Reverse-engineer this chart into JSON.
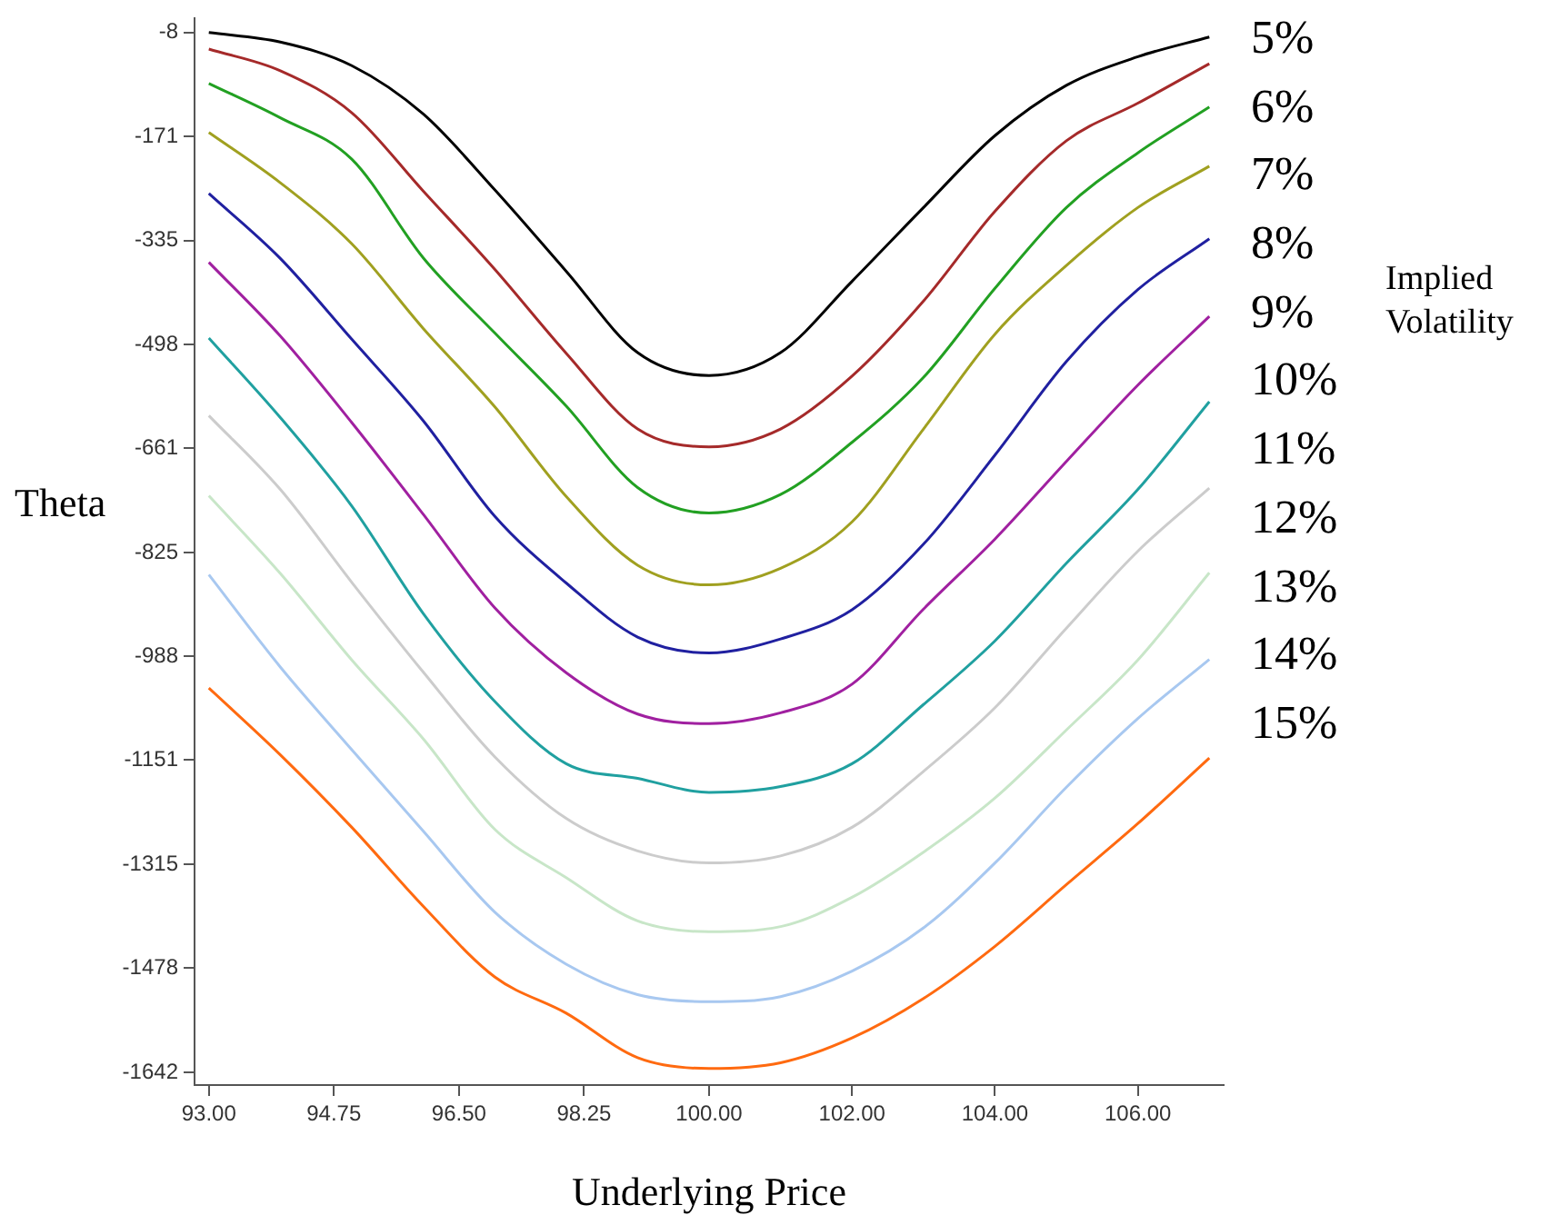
{
  "chart_data": {
    "type": "line",
    "xlabel": "Underlying Price",
    "ylabel": "Theta",
    "legend_title": "Implied Volatility",
    "legend": "right",
    "grid": false,
    "marker": "none",
    "line_style": "solid",
    "x": [
      93,
      94,
      95,
      96,
      97,
      98,
      99,
      100,
      101,
      102,
      103,
      104,
      105,
      106,
      107
    ],
    "xlim": [
      92.8,
      107.2
    ],
    "xticks": [
      {
        "value": 93,
        "label": "93.00"
      },
      {
        "value": 94.75,
        "label": "94.75"
      },
      {
        "value": 96.5,
        "label": "96.50"
      },
      {
        "value": 98.25,
        "label": "98.25"
      },
      {
        "value": 100,
        "label": "100.00"
      },
      {
        "value": 102,
        "label": "102.00"
      },
      {
        "value": 104,
        "label": "104.00"
      },
      {
        "value": 106,
        "label": "106.00"
      }
    ],
    "ylim": [
      -1662,
      14
    ],
    "yticks": [
      -8,
      -171,
      -335,
      -498,
      -661,
      -825,
      -988,
      -1151,
      -1315,
      -1478,
      -1642
    ],
    "series": [
      {
        "name": "5%",
        "color": "#000000",
        "values": [
          -8,
          -23,
          -60,
          -136,
          -255,
          -383,
          -511,
          -547,
          -511,
          -399,
          -283,
          -170,
          -91,
          -46,
          -15
        ]
      },
      {
        "name": "6%",
        "color": "#a52a2a",
        "values": [
          -34,
          -68,
          -134,
          -257,
          -380,
          -512,
          -631,
          -659,
          -631,
          -548,
          -430,
          -289,
          -178,
          -119,
          -57
        ]
      },
      {
        "name": "7%",
        "color": "#22a022",
        "values": [
          -88,
          -142,
          -207,
          -362,
          -480,
          -595,
          -723,
          -763,
          -734,
          -652,
          -550,
          -410,
          -283,
          -197,
          -125
        ]
      },
      {
        "name": "8%",
        "color": "#a0a020",
        "values": [
          -165,
          -244,
          -340,
          -473,
          -596,
          -737,
          -845,
          -876,
          -850,
          -777,
          -631,
          -482,
          -374,
          -283,
          -218
        ]
      },
      {
        "name": "9%",
        "color": "#2020a0",
        "values": [
          -261,
          -363,
          -490,
          -618,
          -768,
          -873,
          -958,
          -983,
          -961,
          -915,
          -812,
          -672,
          -525,
          -412,
          -332
        ]
      },
      {
        "name": "10%",
        "color": "#a020a0",
        "values": [
          -369,
          -485,
          -621,
          -765,
          -912,
          -1014,
          -1079,
          -1094,
          -1077,
          -1032,
          -914,
          -804,
          -682,
          -562,
          -454
        ]
      },
      {
        "name": "11%",
        "color": "#20a0a0",
        "values": [
          -488,
          -613,
          -752,
          -921,
          -1059,
          -1157,
          -1180,
          -1202,
          -1193,
          -1157,
          -1064,
          -964,
          -842,
          -726,
          -588
        ]
      },
      {
        "name": "12%",
        "color": "#cccccc",
        "values": [
          -610,
          -726,
          -872,
          -1013,
          -1146,
          -1243,
          -1294,
          -1313,
          -1302,
          -1257,
          -1169,
          -1069,
          -944,
          -823,
          -724
        ]
      },
      {
        "name": "13%",
        "color": "#c8e6c8",
        "values": [
          -736,
          -858,
          -994,
          -1118,
          -1260,
          -1336,
          -1404,
          -1421,
          -1413,
          -1367,
          -1296,
          -1211,
          -1104,
          -994,
          -857
        ]
      },
      {
        "name": "14%",
        "color": "#a8c8f0",
        "values": [
          -860,
          -1005,
          -1135,
          -1263,
          -1390,
          -1472,
          -1520,
          -1531,
          -1523,
          -1483,
          -1415,
          -1313,
          -1194,
          -1086,
          -993
        ]
      },
      {
        "name": "15%",
        "color": "#ff6a10",
        "values": [
          -1038,
          -1143,
          -1257,
          -1381,
          -1492,
          -1549,
          -1619,
          -1636,
          -1627,
          -1588,
          -1526,
          -1444,
          -1347,
          -1251,
          -1148
        ]
      }
    ]
  }
}
